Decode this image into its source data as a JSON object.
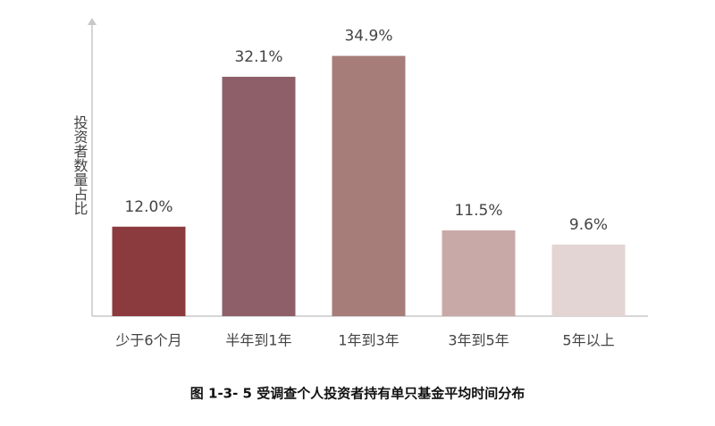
{
  "chart_data": {
    "type": "bar",
    "y_label": "投资者数量占比",
    "caption": "图 1-3- 5 受调查个人投资者持有单只基金平均时间分布",
    "categories": [
      "少于6个月",
      "半年到1年",
      "1年到3年",
      "3年到5年",
      "5年以上"
    ],
    "values": [
      12.0,
      32.1,
      34.9,
      11.5,
      9.6
    ],
    "value_labels": [
      "12.0%",
      "32.1%",
      "34.9%",
      "11.5%",
      "9.6%"
    ],
    "colors": [
      "#8b3a3e",
      "#8e5f69",
      "#a67d79",
      "#c9a9a7",
      "#e3d5d4"
    ],
    "ylim": [
      0,
      40
    ]
  }
}
